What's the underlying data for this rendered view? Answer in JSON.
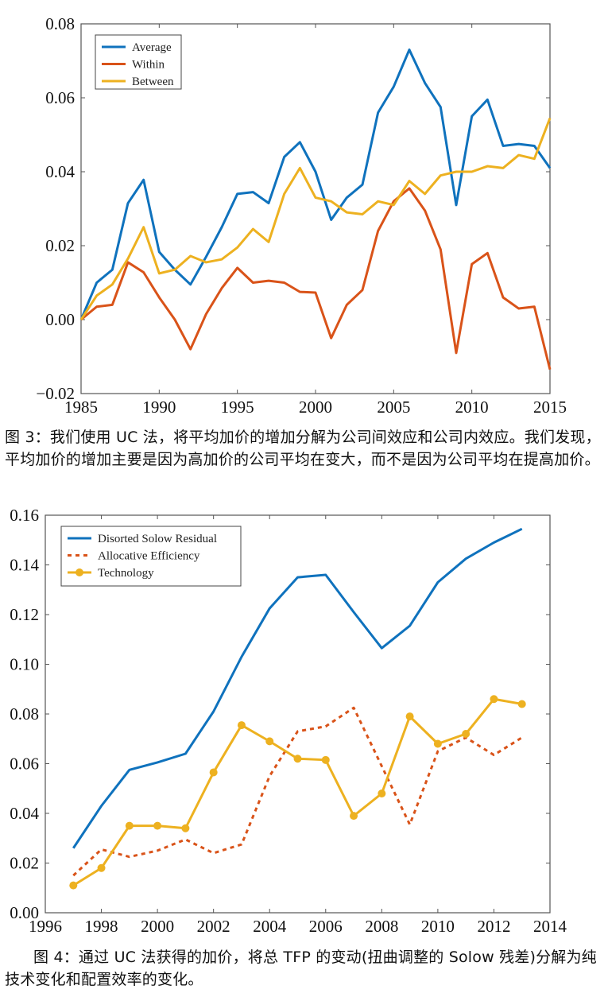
{
  "chart_data": [
    {
      "type": "line",
      "title": "",
      "xlabel": "",
      "ylabel": "",
      "xlim": [
        1985,
        2015
      ],
      "ylim": [
        -0.02,
        0.08
      ],
      "xticks": [
        "1985",
        "1990",
        "1995",
        "2000",
        "2005",
        "2010",
        "2015"
      ],
      "yticks": [
        "−0.02",
        "0.00",
        "0.02",
        "0.04",
        "0.06",
        "0.08"
      ],
      "grid": false,
      "legend_position": "top-left",
      "x": [
        1985,
        1986,
        1987,
        1988,
        1989,
        1990,
        1991,
        1992,
        1993,
        1994,
        1995,
        1996,
        1997,
        1998,
        1999,
        2000,
        2001,
        2002,
        2003,
        2004,
        2005,
        2006,
        2007,
        2008,
        2009,
        2010,
        2011,
        2012,
        2013,
        2014,
        2015
      ],
      "series": [
        {
          "name": "Average",
          "color": "#0f72bd",
          "style": "solid",
          "values": [
            0,
            0.01,
            0.0135,
            0.0315,
            0.0378,
            0.0183,
            0.0135,
            0.0095,
            0.017,
            0.025,
            0.034,
            0.0345,
            0.0315,
            0.044,
            0.048,
            0.04,
            0.027,
            0.033,
            0.0365,
            0.056,
            0.063,
            0.073,
            0.064,
            0.0575,
            0.031,
            0.055,
            0.0595,
            0.047,
            0.0475,
            0.047,
            0.041
          ]
        },
        {
          "name": "Within",
          "color": "#d95319",
          "style": "solid",
          "values": [
            0,
            0.0035,
            0.004,
            0.0155,
            0.0128,
            0.006,
            0,
            -0.008,
            0.0015,
            0.0085,
            0.014,
            0.01,
            0.0105,
            0.01,
            0.0075,
            0.0073,
            -0.005,
            0.004,
            0.008,
            0.024,
            0.032,
            0.0355,
            0.0295,
            0.019,
            -0.009,
            0.015,
            0.018,
            0.006,
            0.003,
            0.0035,
            -0.0135
          ]
        },
        {
          "name": "Between",
          "color": "#edb120",
          "style": "solid",
          "values": [
            0,
            0.0065,
            0.0095,
            0.0165,
            0.025,
            0.0125,
            0.0135,
            0.0172,
            0.0155,
            0.0163,
            0.0195,
            0.0245,
            0.021,
            0.034,
            0.041,
            0.033,
            0.032,
            0.029,
            0.0285,
            0.032,
            0.031,
            0.0375,
            0.034,
            0.039,
            0.04,
            0.04,
            0.0415,
            0.041,
            0.0445,
            0.0435,
            0.0545
          ]
        }
      ]
    },
    {
      "type": "line",
      "title": "",
      "xlabel": "",
      "ylabel": "",
      "xlim": [
        1996,
        2014
      ],
      "ylim": [
        0,
        0.16
      ],
      "xticks": [
        "1996",
        "1998",
        "2000",
        "2002",
        "2004",
        "2006",
        "2008",
        "2010",
        "2012",
        "2014"
      ],
      "yticks": [
        "0.00",
        "0.02",
        "0.04",
        "0.06",
        "0.08",
        "0.10",
        "0.12",
        "0.14",
        "0.16"
      ],
      "grid": false,
      "legend_position": "top-left",
      "x": [
        1997,
        1998,
        1999,
        2000,
        2001,
        2002,
        2003,
        2004,
        2005,
        2006,
        2007,
        2008,
        2009,
        2010,
        2011,
        2012,
        2013
      ],
      "series": [
        {
          "name": "Disorted Solow Residual",
          "color": "#0f72bd",
          "style": "solid",
          "values": [
            0.026,
            0.043,
            0.0575,
            0.0605,
            0.064,
            0.081,
            0.103,
            0.1225,
            0.135,
            0.136,
            0.121,
            0.1065,
            0.1155,
            0.133,
            0.1425,
            0.149,
            0.1545
          ]
        },
        {
          "name": "Allocative Efficiency",
          "color": "#d95319",
          "style": "dotted",
          "values": [
            0.015,
            0.0255,
            0.0225,
            0.025,
            0.0295,
            0.024,
            0.0275,
            0.055,
            0.073,
            0.075,
            0.0825,
            0.059,
            0.0355,
            0.065,
            0.0705,
            0.0635,
            0.0705
          ]
        },
        {
          "name": "Technology",
          "color": "#edb120",
          "style": "solid-markers",
          "values": [
            0.011,
            0.018,
            0.035,
            0.035,
            0.034,
            0.0565,
            0.0755,
            0.069,
            0.062,
            0.0615,
            0.039,
            0.048,
            0.079,
            0.068,
            0.072,
            0.086,
            0.084
          ]
        }
      ]
    }
  ],
  "captions": {
    "fig3": "图 3：我们使用 UC 法，将平均加价的增加分解为公司间效应和公司内效应。我们发现，平均加价的增加主要是因为高加价的公司平均在变大，而不是因为公司平均在提高加价。",
    "fig4": "图 4：通过 UC 法获得的加价，将总 TFP 的变动(扭曲调整的 Solow 残差)分解为纯技术变化和配置效率的变化。"
  }
}
